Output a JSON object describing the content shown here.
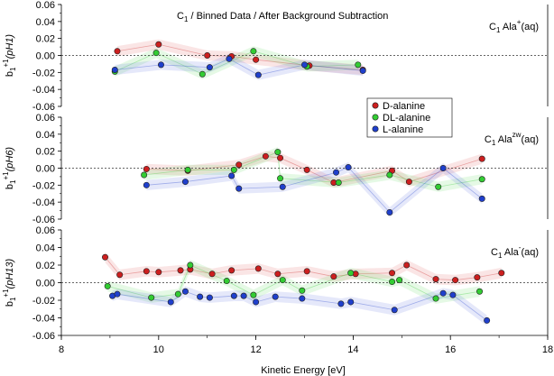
{
  "chart_data": {
    "type": "scatter",
    "title": "C1 / Binned Data / After Background Subtraction",
    "xlabel": "Kinetic Energy [eV]",
    "xlim": [
      8,
      18
    ],
    "x_ticks": [
      "8",
      "10",
      "12",
      "14",
      "16",
      "18"
    ],
    "y_ticks": [
      "0.06",
      "0.04",
      "0.02",
      "0.00",
      "-0.02",
      "-0.04",
      "-0.06"
    ],
    "ylim": [
      -0.06,
      0.06
    ],
    "legend": {
      "placement": "middle-right",
      "entries": [
        {
          "name": "D-alanine",
          "color": "#cc1f1f"
        },
        {
          "name": "DL-alanine",
          "color": "#33cc33"
        },
        {
          "name": "L-alanine",
          "color": "#1f3fcc"
        }
      ]
    },
    "panels": [
      {
        "ylabel_main": "b",
        "ylabel_sub": "1",
        "ylabel_sup": "+1",
        "ylabel_arg": "(pH1)",
        "label_prefix": "C",
        "label_sub": "1",
        "label_mid": " Ala",
        "label_sup": "+",
        "label_suffix": "(aq)",
        "series": [
          {
            "name": "D-alanine",
            "x": [
              9.15,
              10.0,
              11.0,
              11.5,
              12.0,
              13.1,
              14.2
            ],
            "y": [
              0.005,
              0.013,
              0.0,
              -0.001,
              -0.005,
              -0.012,
              -0.017
            ]
          },
          {
            "name": "DL-alanine",
            "x": [
              9.1,
              9.95,
              10.9,
              11.95,
              13.05,
              14.1
            ],
            "y": [
              -0.019,
              0.003,
              -0.022,
              0.005,
              -0.013,
              -0.011
            ]
          },
          {
            "name": "L-alanine",
            "x": [
              9.1,
              10.05,
              11.05,
              11.45,
              12.05,
              13.0,
              14.2
            ],
            "y": [
              -0.017,
              -0.011,
              -0.014,
              -0.004,
              -0.023,
              -0.011,
              -0.018
            ]
          }
        ]
      },
      {
        "ylabel_main": "b",
        "ylabel_sub": "1",
        "ylabel_sup": "+1",
        "ylabel_arg": "(pH6)",
        "label_prefix": "C",
        "label_sub": "1",
        "label_mid": " Ala",
        "label_sup": "zw",
        "label_suffix": "(aq)",
        "series": [
          {
            "name": "D-alanine",
            "x": [
              9.75,
              10.6,
              11.65,
              12.2,
              12.5,
              13.05,
              13.6,
              14.8,
              15.15,
              16.65
            ],
            "y": [
              -0.001,
              -0.003,
              0.004,
              0.014,
              0.012,
              -0.002,
              -0.017,
              -0.003,
              -0.016,
              0.011
            ]
          },
          {
            "name": "DL-alanine",
            "x": [
              9.7,
              10.6,
              11.55,
              12.45,
              12.5,
              13.7,
              14.75,
              15.75,
              16.65
            ],
            "y": [
              -0.008,
              -0.002,
              -0.002,
              0.019,
              -0.012,
              -0.017,
              -0.008,
              -0.022,
              -0.013
            ]
          },
          {
            "name": "L-alanine",
            "x": [
              9.75,
              10.55,
              11.5,
              11.65,
              12.55,
              13.65,
              13.9,
              14.75,
              15.85,
              16.65
            ],
            "y": [
              -0.02,
              -0.016,
              -0.009,
              -0.024,
              -0.022,
              -0.005,
              0.001,
              -0.052,
              0.0,
              -0.036
            ]
          }
        ]
      },
      {
        "ylabel_main": "b",
        "ylabel_sub": "1",
        "ylabel_sup": "+1",
        "ylabel_arg": "(pH13)",
        "label_prefix": "C",
        "label_sub": "1",
        "label_mid": " Ala",
        "label_sup": "-",
        "label_suffix": "(aq)",
        "series": [
          {
            "name": "D-alanine",
            "x": [
              8.9,
              9.2,
              9.75,
              10.0,
              10.45,
              10.65,
              11.1,
              11.5,
              12.05,
              12.45,
              13.05,
              13.6,
              14.05,
              14.8,
              15.1,
              15.7,
              16.1,
              16.55,
              17.05
            ],
            "y": [
              0.029,
              0.009,
              0.013,
              0.012,
              0.014,
              0.015,
              0.01,
              0.014,
              0.016,
              0.01,
              0.013,
              0.007,
              0.01,
              0.011,
              0.02,
              0.004,
              0.003,
              0.006,
              0.011
            ]
          },
          {
            "name": "DL-alanine",
            "x": [
              8.95,
              9.85,
              10.4,
              10.65,
              11.4,
              11.95,
              12.55,
              12.95,
              13.95,
              14.8,
              14.95,
              15.7,
              16.6
            ],
            "y": [
              -0.004,
              -0.017,
              -0.013,
              0.02,
              0.002,
              -0.014,
              0.003,
              -0.009,
              0.011,
              0.001,
              0.003,
              -0.018,
              -0.01
            ]
          },
          {
            "name": "L-alanine",
            "x": [
              9.05,
              9.15,
              10.25,
              10.55,
              10.85,
              11.05,
              11.55,
              11.75,
              12.0,
              12.4,
              12.95,
              13.75,
              13.95,
              14.85,
              15.85,
              16.05,
              16.75
            ],
            "y": [
              -0.015,
              -0.013,
              -0.022,
              -0.01,
              -0.016,
              -0.017,
              -0.015,
              -0.015,
              -0.022,
              -0.016,
              -0.018,
              -0.024,
              -0.022,
              -0.031,
              -0.012,
              -0.014,
              -0.043
            ]
          }
        ]
      }
    ]
  }
}
